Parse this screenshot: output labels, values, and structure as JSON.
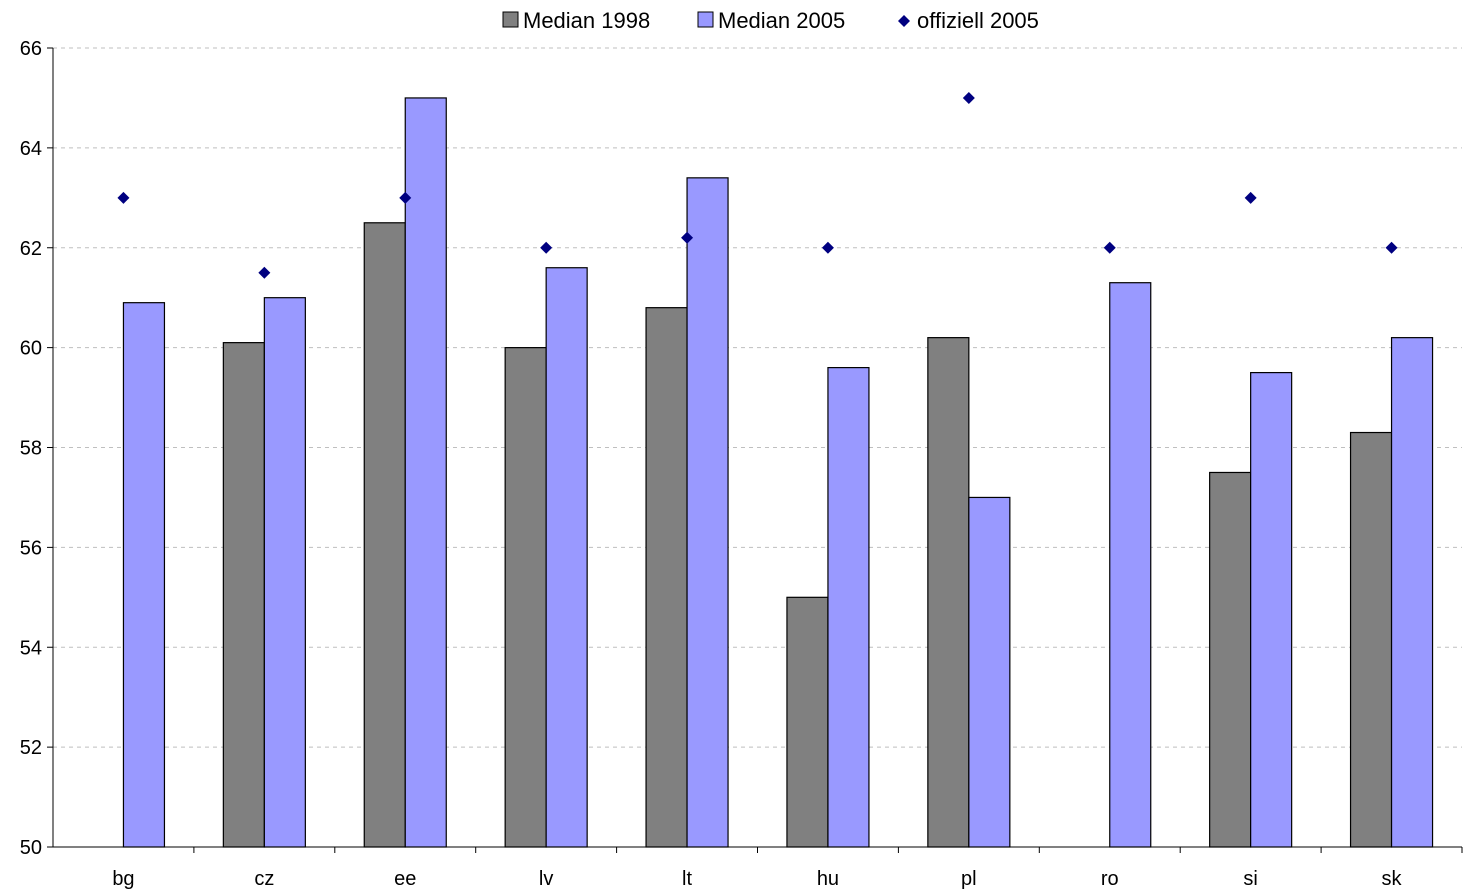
{
  "chart_data": {
    "type": "bar",
    "title": "",
    "xlabel": "",
    "ylabel": "",
    "categories": [
      "bg",
      "cz",
      "ee",
      "lv",
      "lt",
      "hu",
      "pl",
      "ro",
      "si",
      "sk"
    ],
    "ylim": [
      50,
      66
    ],
    "yticks": [
      "50",
      "52",
      "54",
      "56",
      "58",
      "60",
      "62",
      "64",
      "66"
    ],
    "grid": true,
    "legend_position": "top-center",
    "series": [
      {
        "name": "Median 1998",
        "kind": "bar",
        "color": "#808080",
        "values": [
          null,
          60.1,
          62.5,
          60.0,
          60.8,
          55.0,
          60.2,
          null,
          57.5,
          58.3
        ]
      },
      {
        "name": "Median 2005",
        "kind": "bar",
        "color": "#9999ff",
        "values": [
          60.9,
          61.0,
          65.0,
          61.6,
          63.4,
          59.6,
          57.0,
          61.3,
          59.5,
          60.2
        ]
      },
      {
        "name": "offiziell 2005",
        "kind": "marker",
        "color": "#000080",
        "values": [
          63.0,
          61.5,
          63.0,
          62.0,
          62.2,
          62.0,
          65.0,
          62.0,
          63.0,
          62.0
        ]
      }
    ]
  }
}
